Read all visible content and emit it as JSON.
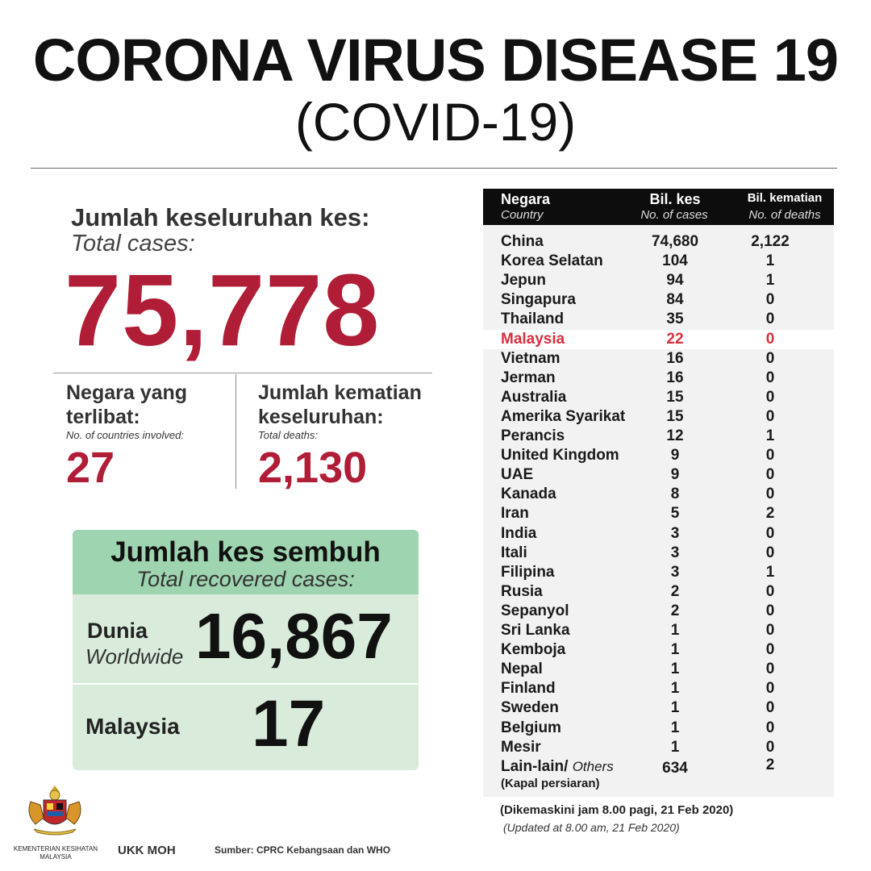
{
  "header": {
    "title": "CORONA VIRUS DISEASE 19",
    "subtitle": "(COVID-19)"
  },
  "total_cases": {
    "label_ms": "Jumlah keseluruhan kes:",
    "label_en": "Total cases:",
    "value": "75,778"
  },
  "countries": {
    "label_ms_1": "Negara yang",
    "label_ms_2": "terlibat:",
    "label_en": "No. of countries involved:",
    "value": "27"
  },
  "deaths": {
    "label_ms_1": "Jumlah kematian",
    "label_ms_2": "keseluruhan:",
    "label_en": "Total deaths:",
    "value": "2,130"
  },
  "recovered": {
    "title_ms": "Jumlah kes sembuh",
    "title_en": "Total recovered cases:",
    "world_label_ms": "Dunia",
    "world_label_en": "Worldwide",
    "world_value": "16,867",
    "malaysia_label": "Malaysia",
    "malaysia_value": "17"
  },
  "table": {
    "col_country_ms": "Negara",
    "col_country_en": "Country",
    "col_cases_ms": "Bil. kes",
    "col_cases_en": "No. of cases",
    "col_deaths_ms": "Bil. kematian",
    "col_deaths_en": "No. of deaths",
    "highlight_color": "#d8303e",
    "rows": [
      {
        "country": "China",
        "cases": "74,680",
        "deaths": "2,122"
      },
      {
        "country": "Korea Selatan",
        "cases": "104",
        "deaths": "1"
      },
      {
        "country": "Jepun",
        "cases": "94",
        "deaths": "1"
      },
      {
        "country": "Singapura",
        "cases": "84",
        "deaths": "0"
      },
      {
        "country": "Thailand",
        "cases": "35",
        "deaths": "0"
      },
      {
        "country": "Malaysia",
        "cases": "22",
        "deaths": "0",
        "highlight": true
      },
      {
        "country": "Vietnam",
        "cases": "16",
        "deaths": "0"
      },
      {
        "country": "Jerman",
        "cases": "16",
        "deaths": "0"
      },
      {
        "country": "Australia",
        "cases": "15",
        "deaths": "0"
      },
      {
        "country": "Amerika Syarikat",
        "cases": "15",
        "deaths": "0"
      },
      {
        "country": "Perancis",
        "cases": "12",
        "deaths": "1"
      },
      {
        "country": "United Kingdom",
        "cases": "9",
        "deaths": "0"
      },
      {
        "country": "UAE",
        "cases": "9",
        "deaths": "0"
      },
      {
        "country": "Kanada",
        "cases": "8",
        "deaths": "0"
      },
      {
        "country": "Iran",
        "cases": "5",
        "deaths": "2"
      },
      {
        "country": "India",
        "cases": "3",
        "deaths": "0"
      },
      {
        "country": "Itali",
        "cases": "3",
        "deaths": "0"
      },
      {
        "country": "Filipina",
        "cases": "3",
        "deaths": "1"
      },
      {
        "country": "Rusia",
        "cases": "2",
        "deaths": "0"
      },
      {
        "country": "Sepanyol",
        "cases": "2",
        "deaths": "0"
      },
      {
        "country": "Sri Lanka",
        "cases": "1",
        "deaths": "0"
      },
      {
        "country": "Kemboja",
        "cases": "1",
        "deaths": "0"
      },
      {
        "country": "Nepal",
        "cases": "1",
        "deaths": "0"
      },
      {
        "country": "Finland",
        "cases": "1",
        "deaths": "0"
      },
      {
        "country": "Sweden",
        "cases": "1",
        "deaths": "0"
      },
      {
        "country": "Belgium",
        "cases": "1",
        "deaths": "0"
      },
      {
        "country": "Mesir",
        "cases": "1",
        "deaths": "0"
      }
    ],
    "others": {
      "country_ms": "Lain-lain/",
      "country_en": "Others",
      "note": "(Kapal persiaran)",
      "cases": "634",
      "deaths": "2"
    }
  },
  "updated": {
    "ms": "(Dikemaskini  jam 8.00 pagi, 21 Feb 2020)",
    "en": "(Updated at 8.00 am, 21 Feb 2020)"
  },
  "footer": {
    "ministry": "KEMENTERIAN KESIHATAN MALAYSIA",
    "ukk": "UKK MOH",
    "source": "Sumber: CPRC Kebangsaan dan WHO"
  },
  "colors": {
    "accent_red": "#b01d36",
    "recovered_head": "#9fd4b0",
    "recovered_body": "#d9ecdb"
  }
}
